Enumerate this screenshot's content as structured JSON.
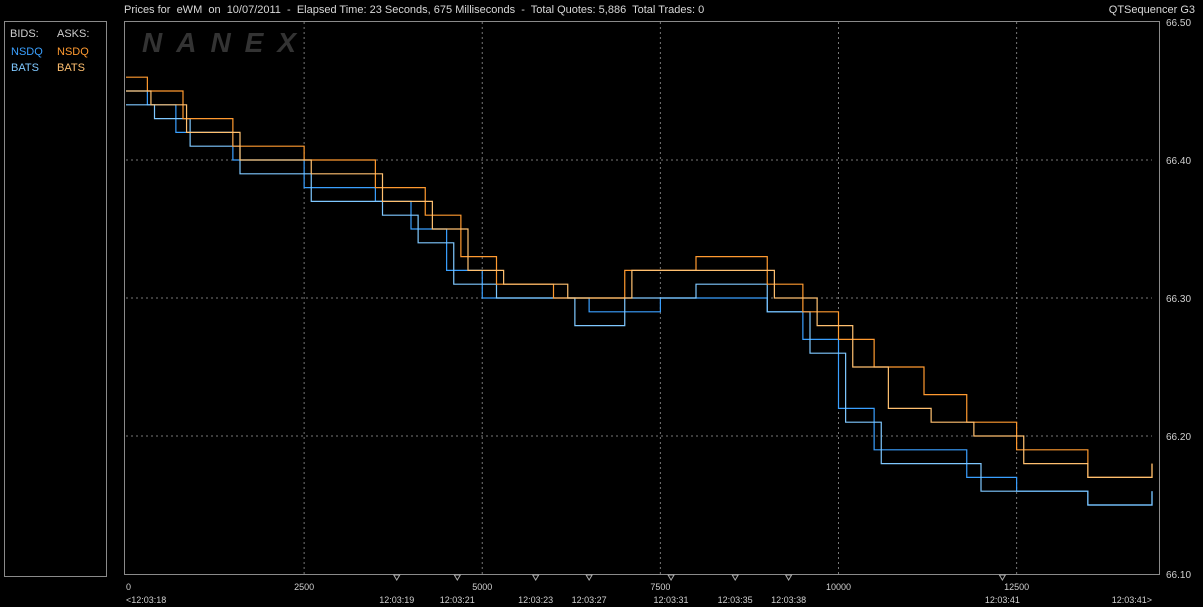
{
  "header": {
    "title": "Prices for  eWM  on  10/07/2011  -  Elapsed Time: 23 Seconds, 675 Milliseconds  -  Total Quotes: 5,886  Total Trades: 0",
    "app_name": "QTSequencer G3"
  },
  "legend": {
    "bids_label": "BIDS:",
    "asks_label": "ASKS:",
    "bids": [
      {
        "name": "NSDQ",
        "color": "#3aa0ff"
      },
      {
        "name": "BATS",
        "color": "#7fc8ff"
      }
    ],
    "asks": [
      {
        "name": "NSDQ",
        "color": "#ff9a30"
      },
      {
        "name": "BATS",
        "color": "#ffc070"
      }
    ]
  },
  "watermark": "NANEX",
  "chart_data": {
    "type": "line",
    "xlim": [
      0,
      14400
    ],
    "ylim": [
      66.1,
      66.5
    ],
    "grid": true,
    "y_ticks": [
      "66.50",
      "66.40",
      "66.30",
      "66.20",
      "66.10"
    ],
    "x_ticks_top": [
      {
        "v": 0,
        "label": "0"
      },
      {
        "v": 2500,
        "label": "2500"
      },
      {
        "v": 5000,
        "label": "5000"
      },
      {
        "v": 7500,
        "label": "7500"
      },
      {
        "v": 10000,
        "label": "10000"
      },
      {
        "v": 12500,
        "label": "12500"
      }
    ],
    "x_ticks_time": [
      {
        "v": 0,
        "label": "<12:03:18"
      },
      {
        "v": 3800,
        "label": "12:03:19"
      },
      {
        "v": 4650,
        "label": "12:03:21"
      },
      {
        "v": 5750,
        "label": "12:03:23"
      },
      {
        "v": 6500,
        "label": "12:03:27"
      },
      {
        "v": 7650,
        "label": "12:03:31"
      },
      {
        "v": 8550,
        "label": "12:03:35"
      },
      {
        "v": 9300,
        "label": "12:03:38"
      },
      {
        "v": 12300,
        "label": "12:03:41"
      },
      {
        "v": 14400,
        "label": "12:03:41>"
      }
    ],
    "series": [
      {
        "name": "NSDQ",
        "side": "bid",
        "color": "#3aa0ff",
        "points": [
          [
            0,
            66.45
          ],
          [
            300,
            66.44
          ],
          [
            700,
            66.42
          ],
          [
            1500,
            66.4
          ],
          [
            2500,
            66.38
          ],
          [
            3500,
            66.37
          ],
          [
            4000,
            66.35
          ],
          [
            4500,
            66.32
          ],
          [
            5000,
            66.3
          ],
          [
            6500,
            66.29
          ],
          [
            7500,
            66.3
          ],
          [
            8500,
            66.3
          ],
          [
            9000,
            66.29
          ],
          [
            9500,
            66.27
          ],
          [
            10000,
            66.22
          ],
          [
            10500,
            66.19
          ],
          [
            11000,
            66.19
          ],
          [
            11800,
            66.17
          ],
          [
            12500,
            66.16
          ],
          [
            13500,
            66.15
          ],
          [
            14400,
            66.16
          ]
        ]
      },
      {
        "name": "BATS",
        "side": "bid",
        "color": "#7fc8ff",
        "points": [
          [
            0,
            66.44
          ],
          [
            400,
            66.43
          ],
          [
            900,
            66.41
          ],
          [
            1600,
            66.39
          ],
          [
            2600,
            66.37
          ],
          [
            3600,
            66.36
          ],
          [
            4100,
            66.34
          ],
          [
            4600,
            66.31
          ],
          [
            5200,
            66.3
          ],
          [
            6300,
            66.28
          ],
          [
            7000,
            66.3
          ],
          [
            8000,
            66.31
          ],
          [
            9000,
            66.29
          ],
          [
            9600,
            66.26
          ],
          [
            10100,
            66.21
          ],
          [
            10600,
            66.18
          ],
          [
            11200,
            66.18
          ],
          [
            12000,
            66.16
          ],
          [
            12800,
            66.16
          ],
          [
            13500,
            66.15
          ],
          [
            14400,
            66.16
          ]
        ]
      },
      {
        "name": "NSDQ",
        "side": "ask",
        "color": "#ff9a30",
        "points": [
          [
            0,
            66.46
          ],
          [
            300,
            66.45
          ],
          [
            800,
            66.43
          ],
          [
            1500,
            66.41
          ],
          [
            2500,
            66.4
          ],
          [
            3500,
            66.38
          ],
          [
            4200,
            66.36
          ],
          [
            4700,
            66.33
          ],
          [
            5200,
            66.31
          ],
          [
            6000,
            66.3
          ],
          [
            7000,
            66.32
          ],
          [
            8000,
            66.33
          ],
          [
            9000,
            66.31
          ],
          [
            9500,
            66.29
          ],
          [
            10000,
            66.27
          ],
          [
            10500,
            66.25
          ],
          [
            11200,
            66.23
          ],
          [
            11800,
            66.21
          ],
          [
            12500,
            66.19
          ],
          [
            13500,
            66.17
          ],
          [
            14400,
            66.18
          ]
        ]
      },
      {
        "name": "BATS",
        "side": "ask",
        "color": "#ffc070",
        "points": [
          [
            0,
            66.45
          ],
          [
            350,
            66.44
          ],
          [
            850,
            66.42
          ],
          [
            1600,
            66.4
          ],
          [
            2600,
            66.39
          ],
          [
            3600,
            66.37
          ],
          [
            4300,
            66.35
          ],
          [
            4800,
            66.32
          ],
          [
            5300,
            66.31
          ],
          [
            6200,
            66.3
          ],
          [
            7100,
            66.32
          ],
          [
            8200,
            66.32
          ],
          [
            9100,
            66.3
          ],
          [
            9700,
            66.28
          ],
          [
            10200,
            66.25
          ],
          [
            10700,
            66.22
          ],
          [
            11300,
            66.21
          ],
          [
            11900,
            66.2
          ],
          [
            12600,
            66.18
          ],
          [
            13500,
            66.17
          ],
          [
            14400,
            66.18
          ]
        ]
      }
    ]
  }
}
